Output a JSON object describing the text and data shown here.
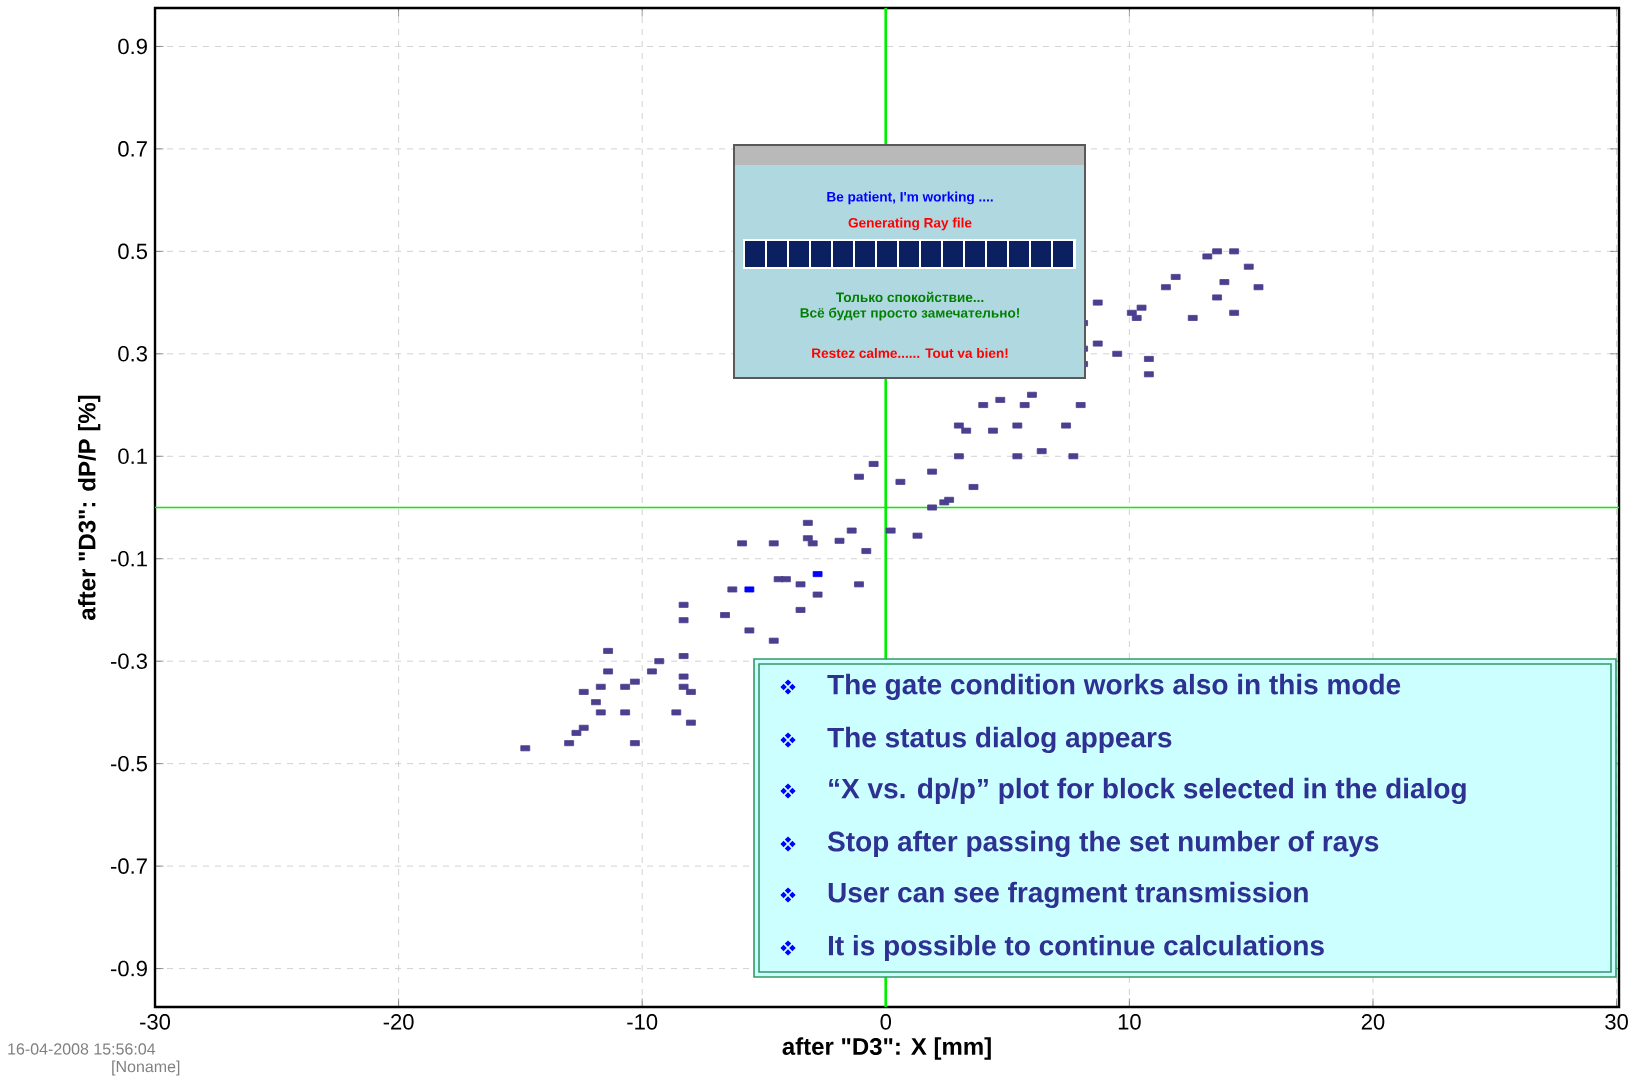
{
  "chart_data": {
    "type": "scatter",
    "xlabel": "after \"D3\": X [mm]",
    "ylabel": "after \"D3\": dP/P [%]",
    "xlim": [
      -30,
      30.1
    ],
    "ylim": [
      -0.975,
      0.975
    ],
    "xticks": [
      -30,
      -20,
      -10,
      0,
      10,
      20,
      30
    ],
    "yticks": [
      -0.9,
      -0.7,
      -0.5,
      -0.3,
      -0.1,
      0.1,
      0.3,
      0.5,
      0.7,
      0.9
    ],
    "grid": true,
    "marker": "square",
    "series": [
      {
        "color": "#4b3f8f",
        "x": [
          -14.8,
          -13.0,
          -12.7,
          -12.4,
          -12.4,
          -11.9,
          -11.7,
          -11.4,
          -11.4,
          -11.7,
          -10.7,
          -10.3,
          -10.7,
          -10.3,
          -9.6,
          -9.3,
          -8.6,
          -8.3,
          -8.3,
          -8.3,
          -8.3,
          -8.3,
          -8.0,
          -8.0,
          -6.6,
          -6.3,
          -5.9,
          -5.6,
          -4.6,
          -4.6,
          -4.4,
          -4.1,
          -3.5,
          -3.5,
          -3.2,
          -3.2,
          -3.0,
          -2.8,
          -1.9,
          -1.4,
          -1.1,
          -0.8,
          -1.1,
          -0.5,
          0.2,
          0.6,
          1.3,
          1.9,
          1.9,
          2.4,
          2.6,
          3.0,
          3.0,
          3.3,
          3.6,
          4.0,
          4.4,
          4.7,
          5.4,
          5.4,
          5.7,
          6.0,
          6.4,
          7.4,
          7.7,
          8.0,
          8.1,
          8.1,
          8.1,
          8.7,
          8.7,
          9.5,
          10.1,
          10.3,
          10.5,
          10.8,
          10.8,
          11.5,
          11.9,
          12.6,
          13.2,
          13.6,
          14.3,
          13.9,
          13.6,
          14.3,
          14.9,
          15.3
        ],
        "values": [
          -0.47,
          -0.46,
          -0.44,
          -0.43,
          -0.36,
          -0.38,
          -0.35,
          -0.32,
          -0.28,
          -0.4,
          -0.35,
          -0.34,
          -0.4,
          -0.46,
          -0.32,
          -0.3,
          -0.4,
          -0.35,
          -0.29,
          -0.22,
          -0.19,
          -0.33,
          -0.42,
          -0.36,
          -0.21,
          -0.16,
          -0.07,
          -0.24,
          -0.07,
          -0.26,
          -0.14,
          -0.14,
          -0.15,
          -0.2,
          -0.03,
          -0.06,
          -0.07,
          -0.17,
          -0.065,
          -0.045,
          -0.15,
          -0.085,
          0.06,
          0.085,
          -0.045,
          0.05,
          -0.055,
          0.07,
          0.0,
          0.01,
          0.015,
          0.1,
          0.16,
          0.15,
          0.04,
          0.2,
          0.15,
          0.21,
          0.16,
          0.1,
          0.2,
          0.22,
          0.11,
          0.16,
          0.1,
          0.2,
          0.28,
          0.36,
          0.31,
          0.32,
          0.4,
          0.3,
          0.38,
          0.37,
          0.39,
          0.29,
          0.26,
          0.43,
          0.45,
          0.37,
          0.49,
          0.5,
          0.5,
          0.44,
          0.41,
          0.38,
          0.47,
          0.43
        ]
      },
      {
        "color": "#0000ff",
        "x": [
          -5.6,
          -2.8
        ],
        "values": [
          -0.16,
          -0.13
        ]
      }
    ],
    "ref_lines": [
      {
        "axis": "x",
        "value": 0,
        "color": "#00ee00"
      },
      {
        "axis": "y",
        "value": 0,
        "color": "#00ee00"
      }
    ],
    "annotations": [
      "Be patient, I'm working ....",
      "Generating Ray file",
      "Только спокойствие...",
      "Всё будет просто замечательно!",
      "Restez calme...... Tout va bien!",
      "The gate condition works also in this mode",
      "The status dialog appears",
      "“X vs. dp/p” plot  for block selected in the dialog",
      "Stop after passing the set number of rays",
      "User can see fragment transmission",
      "It is possible to continue calculations",
      "16-04-2008  15:56:04",
      "[Noname]"
    ]
  }
}
